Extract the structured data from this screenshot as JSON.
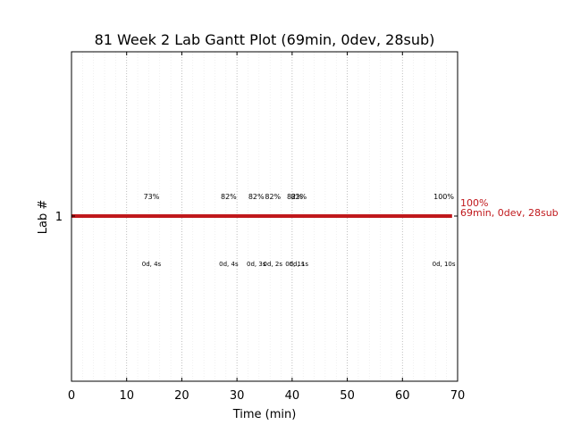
{
  "chart_data": {
    "type": "gantt",
    "title": "81 Week 2 Lab Gantt Plot (69min, 0dev, 28sub)",
    "xlabel": "Time (min)",
    "ylabel": "Lab #",
    "xlim": [
      0,
      70
    ],
    "xticks": [
      0,
      10,
      20,
      30,
      40,
      50,
      60,
      70
    ],
    "x_tick_labels": [
      "0",
      "10",
      "20",
      "30",
      "40",
      "50",
      "60",
      "70"
    ],
    "major_grid_x": [
      10,
      20,
      30,
      40,
      50,
      60
    ],
    "y_categories": [
      "1"
    ],
    "bar": {
      "lab": "1",
      "start": 0,
      "end": 69,
      "color": "#c0181c"
    },
    "end_labels": [
      "100%",
      "69min, 0dev, 28sub"
    ],
    "milestones": [
      {
        "x": 14.5,
        "pct": "73%",
        "sub": "0d, 4s"
      },
      {
        "x": 28.5,
        "pct": "82%",
        "sub": "0d, 4s"
      },
      {
        "x": 33.5,
        "pct": "82%",
        "sub": "0d, 3s"
      },
      {
        "x": 36.5,
        "pct": "82%",
        "sub": "0d, 2s"
      },
      {
        "x": 40.5,
        "pct": "82%",
        "sub": "0d, 1s"
      },
      {
        "x": 41.2,
        "pct": "82%",
        "sub": "0d, 1s"
      },
      {
        "x": 67.5,
        "pct": "100%",
        "sub": "0d, 10s"
      }
    ]
  }
}
